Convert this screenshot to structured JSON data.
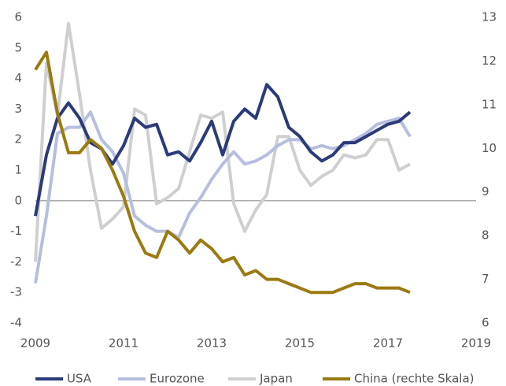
{
  "chart_data": {
    "type": "line",
    "x": [
      2009,
      2009.25,
      2009.5,
      2009.75,
      2010,
      2010.25,
      2010.5,
      2010.75,
      2011,
      2011.25,
      2011.5,
      2011.75,
      2012,
      2012.25,
      2012.5,
      2012.75,
      2013,
      2013.25,
      2013.5,
      2013.75,
      2014,
      2014.25,
      2014.5,
      2014.75,
      2015,
      2015.25,
      2015.5,
      2015.75,
      2016,
      2016.25,
      2016.5,
      2016.75,
      2017,
      2017.25,
      2017.5
    ],
    "series": [
      {
        "name": "USA",
        "color": "#2b3a78",
        "values": [
          -0.5,
          1.5,
          2.7,
          3.2,
          2.7,
          1.9,
          1.7,
          1.2,
          1.8,
          2.7,
          2.4,
          2.5,
          1.5,
          1.6,
          1.3,
          1.9,
          2.6,
          1.5,
          2.6,
          3.0,
          2.7,
          3.8,
          3.4,
          2.4,
          2.1,
          1.6,
          1.3,
          1.5,
          1.9,
          1.9,
          2.1,
          2.3,
          2.5,
          2.6,
          2.9
        ]
      },
      {
        "name": "Eurozone",
        "color": "#b6bedf",
        "values": [
          -2.7,
          -0.5,
          2.2,
          2.4,
          2.4,
          2.9,
          2.0,
          1.6,
          0.9,
          -0.5,
          -0.8,
          -1.0,
          -1.0,
          -1.2,
          -0.4,
          0.1,
          0.7,
          1.2,
          1.6,
          1.2,
          1.3,
          1.5,
          1.8,
          2.0,
          2.0,
          1.7,
          1.8,
          1.7,
          1.8,
          2.0,
          2.2,
          2.5,
          2.6,
          2.7,
          2.1
        ]
      },
      {
        "name": "Japan",
        "color": "#cfcfcf",
        "values": [
          -2.0,
          4.5,
          2.8,
          5.8,
          3.5,
          1.0,
          -0.9,
          -0.6,
          -0.2,
          3.0,
          2.8,
          -0.1,
          0.1,
          0.4,
          1.6,
          2.8,
          2.7,
          2.9,
          -0.1,
          -1.0,
          -0.3,
          0.2,
          2.1,
          2.1,
          1.0,
          0.5,
          0.8,
          1.0,
          1.5,
          1.4,
          1.5,
          2.0,
          2.0,
          1.0,
          1.2
        ]
      },
      {
        "name": "China (rechte Skala)",
        "color": "#9a7a12",
        "axis": "y2",
        "values": [
          11.8,
          12.2,
          10.8,
          9.9,
          9.9,
          10.2,
          10.0,
          9.5,
          8.9,
          8.1,
          7.6,
          7.5,
          8.1,
          7.9,
          7.6,
          7.9,
          7.7,
          7.4,
          7.5,
          7.1,
          7.2,
          7.0,
          7.0,
          6.9,
          6.8,
          6.7,
          6.7,
          6.7,
          6.8,
          6.9,
          6.9,
          6.8,
          6.8,
          6.8,
          6.7
        ]
      }
    ],
    "xlim": [
      2009,
      2019
    ],
    "xticks": [
      2009,
      2011,
      2013,
      2015,
      2017,
      2019
    ],
    "ylim": [
      -4,
      6
    ],
    "yticks": [
      -4,
      -3,
      -2,
      -1,
      0,
      1,
      2,
      3,
      4,
      5,
      6
    ],
    "y2lim": [
      6,
      13
    ],
    "y2ticks": [
      6,
      7,
      8,
      9,
      10,
      11,
      12,
      13
    ]
  }
}
